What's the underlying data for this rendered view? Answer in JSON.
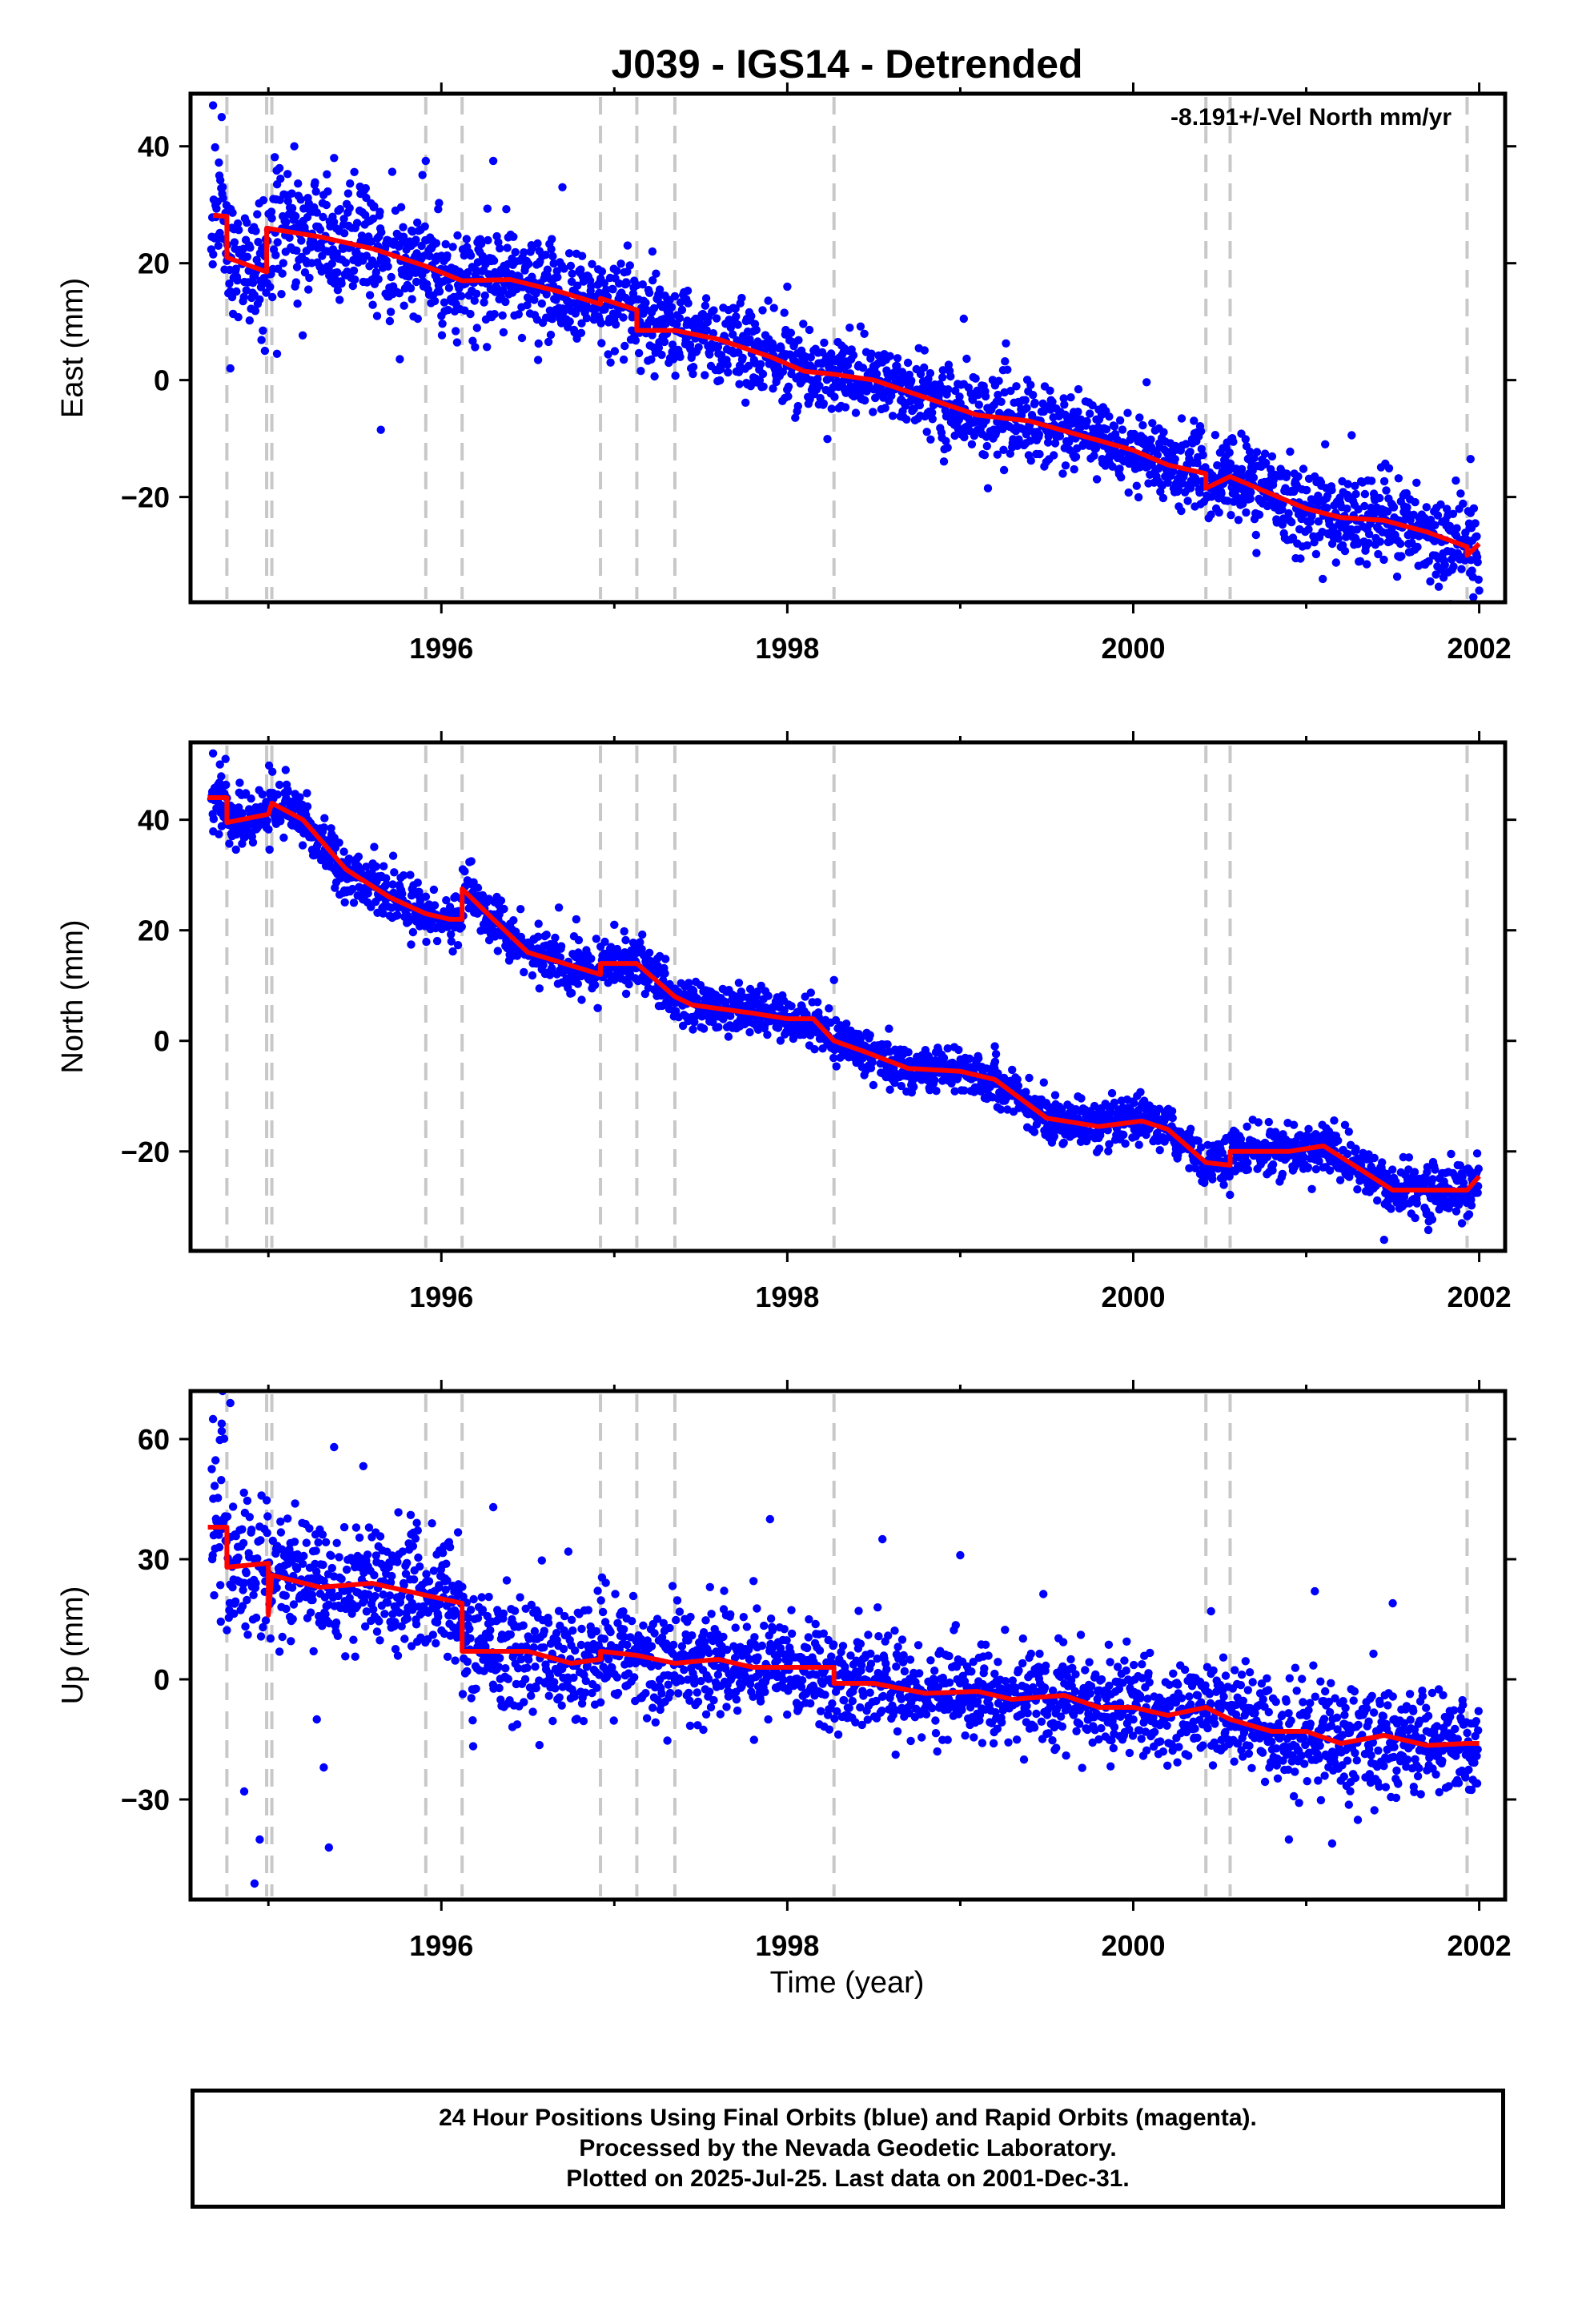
{
  "title": "J039 - IGS14 - Detrended",
  "annotation": "-8.191+/-Vel North mm/yr",
  "xlabel": "Time (year)",
  "footer": {
    "line1": "24 Hour Positions Using Final Orbits (blue) and Rapid Orbits (magenta).",
    "line2": "Processed by the Nevada Geodetic Laboratory.",
    "line3": "Plotted on 2025-Jul-25. Last data on 2001-Dec-31."
  },
  "colors": {
    "points": "#0000ff",
    "model": "#ff0000",
    "steps": "#c8c8c8",
    "frame": "#000000"
  },
  "chart_data": [
    {
      "type": "scatter",
      "panel": "east",
      "ylabel": "East (mm)",
      "xlim": [
        1994.55,
        2002.15
      ],
      "ylim": [
        -38,
        49
      ],
      "xticks": [
        1996,
        1998,
        2000,
        2002
      ],
      "yticks": [
        -20,
        0,
        20,
        40
      ],
      "step_lines": [
        1994.76,
        1994.99,
        1995.02,
        1995.91,
        1996.12,
        1996.92,
        1997.13,
        1997.35,
        1998.27,
        2000.42,
        2000.56,
        2001.93
      ],
      "model": [
        [
          1994.68,
          28.2
        ],
        [
          1994.76,
          28.0
        ],
        [
          1994.76,
          21.0
        ],
        [
          1994.99,
          18.5
        ],
        [
          1994.99,
          26.0
        ],
        [
          1995.3,
          24.5
        ],
        [
          1995.6,
          22.5
        ],
        [
          1995.91,
          19.5
        ],
        [
          1996.12,
          17.0
        ],
        [
          1996.4,
          17.2
        ],
        [
          1996.7,
          15.0
        ],
        [
          1996.92,
          13.0
        ],
        [
          1996.92,
          14.0
        ],
        [
          1997.13,
          12.0
        ],
        [
          1997.13,
          8.5
        ],
        [
          1997.35,
          8.5
        ],
        [
          1997.6,
          7.0
        ],
        [
          1997.9,
          4.0
        ],
        [
          1998.1,
          1.5
        ],
        [
          1998.27,
          1.0
        ],
        [
          1998.5,
          0.0
        ],
        [
          1998.8,
          -3.0
        ],
        [
          1999.1,
          -6.0
        ],
        [
          1999.4,
          -7.0
        ],
        [
          1999.7,
          -9.5
        ],
        [
          2000.0,
          -12.0
        ],
        [
          2000.2,
          -14.5
        ],
        [
          2000.42,
          -16.0
        ],
        [
          2000.42,
          -18.5
        ],
        [
          2000.56,
          -16.5
        ],
        [
          2000.8,
          -19.5
        ],
        [
          2001.0,
          -22.0
        ],
        [
          2001.2,
          -23.5
        ],
        [
          2001.45,
          -24.0
        ],
        [
          2001.7,
          -26.0
        ],
        [
          2001.93,
          -28.5
        ],
        [
          2001.93,
          -30.0
        ],
        [
          2002.0,
          -28.0
        ]
      ],
      "scatter_model": [
        [
          1994.65,
          29
        ],
        [
          1994.76,
          28
        ],
        [
          1994.76,
          21
        ],
        [
          1995.0,
          18.5
        ],
        [
          1995.0,
          26
        ],
        [
          1995.3,
          24.5
        ],
        [
          1995.6,
          22.5
        ],
        [
          1995.91,
          19.5
        ],
        [
          1996.12,
          17
        ],
        [
          1996.4,
          17
        ],
        [
          1996.7,
          15
        ],
        [
          1996.92,
          13
        ],
        [
          1997.13,
          12
        ],
        [
          1997.13,
          8.5
        ],
        [
          1997.35,
          8.5
        ],
        [
          1997.6,
          7
        ],
        [
          1997.9,
          4
        ],
        [
          1998.1,
          1.5
        ],
        [
          1998.27,
          1
        ],
        [
          1998.5,
          0
        ],
        [
          1998.8,
          -3
        ],
        [
          1999.1,
          -6
        ],
        [
          1999.4,
          -7
        ],
        [
          1999.7,
          -9.5
        ],
        [
          2000.0,
          -12
        ],
        [
          2000.2,
          -14.5
        ],
        [
          2000.42,
          -16
        ],
        [
          2000.42,
          -18.5
        ],
        [
          2000.56,
          -16.5
        ],
        [
          2000.8,
          -19.5
        ],
        [
          2001.0,
          -22
        ],
        [
          2001.2,
          -23.5
        ],
        [
          2001.45,
          -24
        ],
        [
          2001.7,
          -26
        ],
        [
          2001.93,
          -28.5
        ],
        [
          2002.0,
          -28
        ]
      ],
      "noise_sd": [
        [
          1994.6,
          6
        ],
        [
          1995.5,
          5
        ],
        [
          1996.5,
          4
        ],
        [
          1998.5,
          3.2
        ],
        [
          2001.5,
          3.8
        ]
      ],
      "outliers": [
        [
          1994.68,
          47
        ],
        [
          1994.73,
          45
        ],
        [
          1995.15,
          40
        ],
        [
          1995.38,
          38
        ],
        [
          1995.91,
          37.5
        ],
        [
          1996.3,
          37.5
        ],
        [
          1996.7,
          33
        ],
        [
          1995.65,
          -8.5
        ],
        [
          1996.0,
          11
        ],
        [
          1997.22,
          22
        ],
        [
          1998.0,
          16
        ],
        [
          1999.02,
          10.5
        ],
        [
          1999.16,
          -18.5
        ],
        [
          2001.95,
          -13.5
        ],
        [
          2002.0,
          -36
        ],
        [
          1994.78,
          2
        ],
        [
          1994.98,
          5
        ],
        [
          1995.05,
          4.5
        ]
      ]
    },
    {
      "type": "scatter",
      "panel": "north",
      "ylabel": "North (mm)",
      "xlim": [
        1994.55,
        2002.15
      ],
      "ylim": [
        -38,
        54
      ],
      "xticks": [
        1996,
        1998,
        2000,
        2002
      ],
      "yticks": [
        -20,
        0,
        20,
        40
      ],
      "step_lines": [
        1994.76,
        1994.99,
        1995.02,
        1995.91,
        1996.12,
        1996.92,
        1997.13,
        1997.35,
        1998.27,
        2000.42,
        2000.56,
        2001.93
      ],
      "scatter_model": [
        [
          1994.65,
          44
        ],
        [
          1994.76,
          44
        ],
        [
          1994.76,
          39.5
        ],
        [
          1995.0,
          41
        ],
        [
          1995.02,
          43
        ],
        [
          1995.2,
          40
        ],
        [
          1995.45,
          31
        ],
        [
          1995.7,
          26
        ],
        [
          1995.91,
          23
        ],
        [
          1996.05,
          22
        ],
        [
          1996.12,
          22
        ],
        [
          1996.12,
          27.5
        ],
        [
          1996.3,
          22
        ],
        [
          1996.5,
          16
        ],
        [
          1996.92,
          12
        ],
        [
          1996.92,
          14
        ],
        [
          1997.13,
          14
        ],
        [
          1997.35,
          8
        ],
        [
          1997.45,
          6.5
        ],
        [
          1997.8,
          5
        ],
        [
          1998.0,
          4
        ],
        [
          1998.15,
          4
        ],
        [
          1998.27,
          0
        ],
        [
          1998.45,
          -2
        ],
        [
          1998.7,
          -5
        ],
        [
          1999.0,
          -5.5
        ],
        [
          1999.2,
          -7
        ],
        [
          1999.5,
          -14
        ],
        [
          1999.8,
          -15.5
        ],
        [
          2000.05,
          -14.5
        ],
        [
          2000.2,
          -16
        ],
        [
          2000.42,
          -22
        ],
        [
          2000.56,
          -22.5
        ],
        [
          2000.56,
          -20
        ],
        [
          2000.9,
          -20
        ],
        [
          2001.1,
          -19
        ],
        [
          2001.3,
          -23
        ],
        [
          2001.5,
          -27
        ],
        [
          2001.93,
          -27
        ],
        [
          2002.0,
          -24.5
        ]
      ],
      "noise_sd": [
        [
          1994.6,
          2.6
        ],
        [
          1996.0,
          2.4
        ],
        [
          1998.5,
          2.0
        ],
        [
          2000.5,
          2.0
        ],
        [
          2001.5,
          2.4
        ]
      ],
      "outliers": [
        [
          1994.68,
          52
        ],
        [
          1994.72,
          50
        ],
        [
          1995.1,
          49
        ],
        [
          1996.78,
          22
        ],
        [
          1997.0,
          21
        ],
        [
          1998.27,
          11
        ],
        [
          1999.2,
          -1
        ],
        [
          2001.45,
          -36
        ],
        [
          2001.9,
          -33
        ]
      ]
    },
    {
      "type": "scatter",
      "panel": "up",
      "ylabel": "Up (mm)",
      "xlim": [
        1994.55,
        2002.15
      ],
      "ylim": [
        -55,
        72
      ],
      "xticks": [
        1996,
        1998,
        2000,
        2002
      ],
      "yticks": [
        -30,
        0,
        30,
        60
      ],
      "step_lines": [
        1994.76,
        1994.99,
        1995.02,
        1995.91,
        1996.12,
        1996.92,
        1997.13,
        1997.35,
        1998.27,
        2000.42,
        2000.56,
        2001.93
      ],
      "scatter_model": [
        [
          1994.65,
          38
        ],
        [
          1994.76,
          38
        ],
        [
          1994.76,
          28
        ],
        [
          1995.0,
          29
        ],
        [
          1995.0,
          16
        ],
        [
          1995.02,
          26
        ],
        [
          1995.3,
          23
        ],
        [
          1995.6,
          24
        ],
        [
          1995.91,
          21
        ],
        [
          1996.12,
          19
        ],
        [
          1996.12,
          7
        ],
        [
          1996.5,
          7
        ],
        [
          1996.75,
          4
        ],
        [
          1996.92,
          5
        ],
        [
          1996.92,
          7
        ],
        [
          1997.13,
          6
        ],
        [
          1997.35,
          4
        ],
        [
          1997.6,
          5
        ],
        [
          1997.8,
          3
        ],
        [
          1998.27,
          3
        ],
        [
          1998.27,
          -1
        ],
        [
          1998.5,
          -1
        ],
        [
          1998.8,
          -3.5
        ],
        [
          1999.1,
          -3
        ],
        [
          1999.3,
          -5
        ],
        [
          1999.6,
          -4
        ],
        [
          1999.8,
          -7
        ],
        [
          2000.0,
          -7
        ],
        [
          2000.2,
          -9
        ],
        [
          2000.42,
          -7
        ],
        [
          2000.56,
          -10
        ],
        [
          2000.8,
          -13
        ],
        [
          2001.0,
          -13
        ],
        [
          2001.2,
          -16
        ],
        [
          2001.45,
          -14
        ],
        [
          2001.7,
          -16.5
        ],
        [
          2001.93,
          -16
        ],
        [
          2002.0,
          -16
        ]
      ],
      "noise_sd": [
        [
          1994.6,
          9
        ],
        [
          1995.8,
          8
        ],
        [
          1996.5,
          7.5
        ],
        [
          1998.5,
          6
        ],
        [
          2000.5,
          6
        ],
        [
          2001.2,
          7.5
        ],
        [
          2002.0,
          6
        ]
      ],
      "outliers": [
        [
          1994.68,
          65
        ],
        [
          1994.73,
          62
        ],
        [
          1994.78,
          69
        ],
        [
          1994.95,
          -40
        ],
        [
          1994.86,
          -28
        ],
        [
          1994.92,
          -51
        ],
        [
          1995.35,
          -42
        ],
        [
          1995.32,
          -22
        ],
        [
          1995.28,
          -10
        ],
        [
          1995.38,
          58
        ],
        [
          1996.3,
          43
        ],
        [
          1997.9,
          40
        ],
        [
          1998.55,
          35
        ],
        [
          1999.0,
          31
        ],
        [
          2000.45,
          17
        ],
        [
          2000.6,
          -16
        ],
        [
          2001.05,
          22
        ],
        [
          2001.15,
          -41
        ],
        [
          2001.5,
          19
        ],
        [
          2000.9,
          -40
        ]
      ]
    }
  ]
}
